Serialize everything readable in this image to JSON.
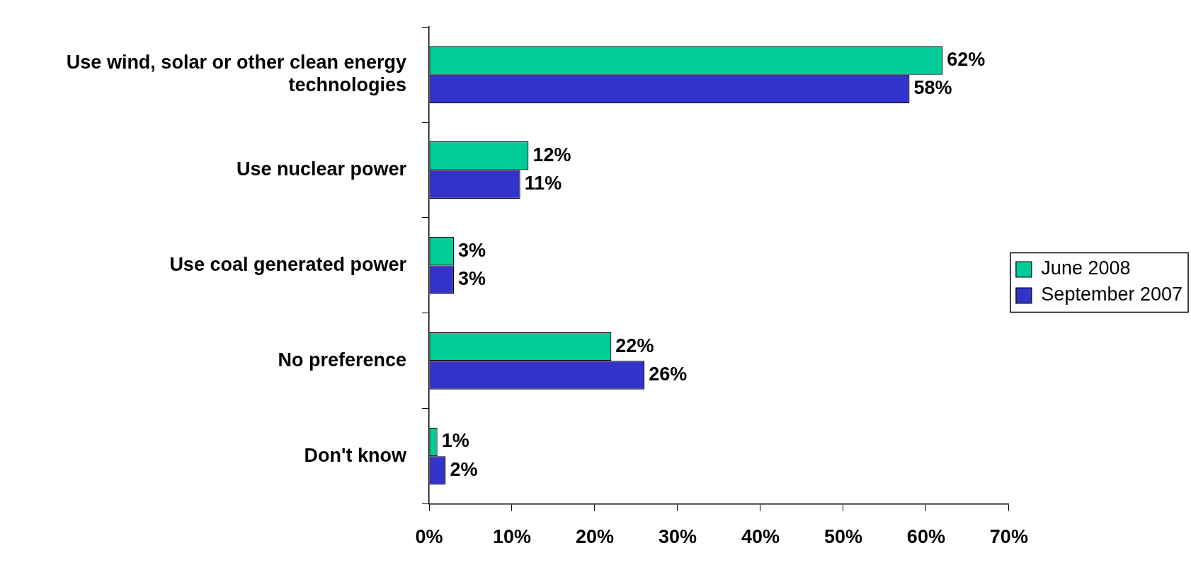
{
  "chart_data": {
    "type": "bar",
    "orientation": "horizontal",
    "categories": [
      "Use wind, solar or other clean energy technologies",
      "Use nuclear power",
      "Use coal generated power",
      "No preference",
      "Don't know"
    ],
    "series": [
      {
        "name": "June 2008",
        "color": "#00cc99",
        "values": [
          62,
          12,
          3,
          22,
          1
        ],
        "value_labels": [
          "62%",
          "12%",
          "3%",
          "22%",
          "1%"
        ]
      },
      {
        "name": "September 2007",
        "color": "#3333cc",
        "values": [
          58,
          11,
          3,
          26,
          2
        ],
        "value_labels": [
          "58%",
          "11%",
          "3%",
          "26%",
          "2%"
        ]
      }
    ],
    "xlim": [
      0,
      70
    ],
    "xticks": [
      {
        "value": 0,
        "label": "0%"
      },
      {
        "value": 10,
        "label": "10%"
      },
      {
        "value": 20,
        "label": "20%"
      },
      {
        "value": 30,
        "label": "30%"
      },
      {
        "value": 40,
        "label": "40%"
      },
      {
        "value": 50,
        "label": "50%"
      },
      {
        "value": 60,
        "label": "60%"
      },
      {
        "value": 70,
        "label": "70%"
      }
    ],
    "grid": false,
    "legend": "right"
  }
}
